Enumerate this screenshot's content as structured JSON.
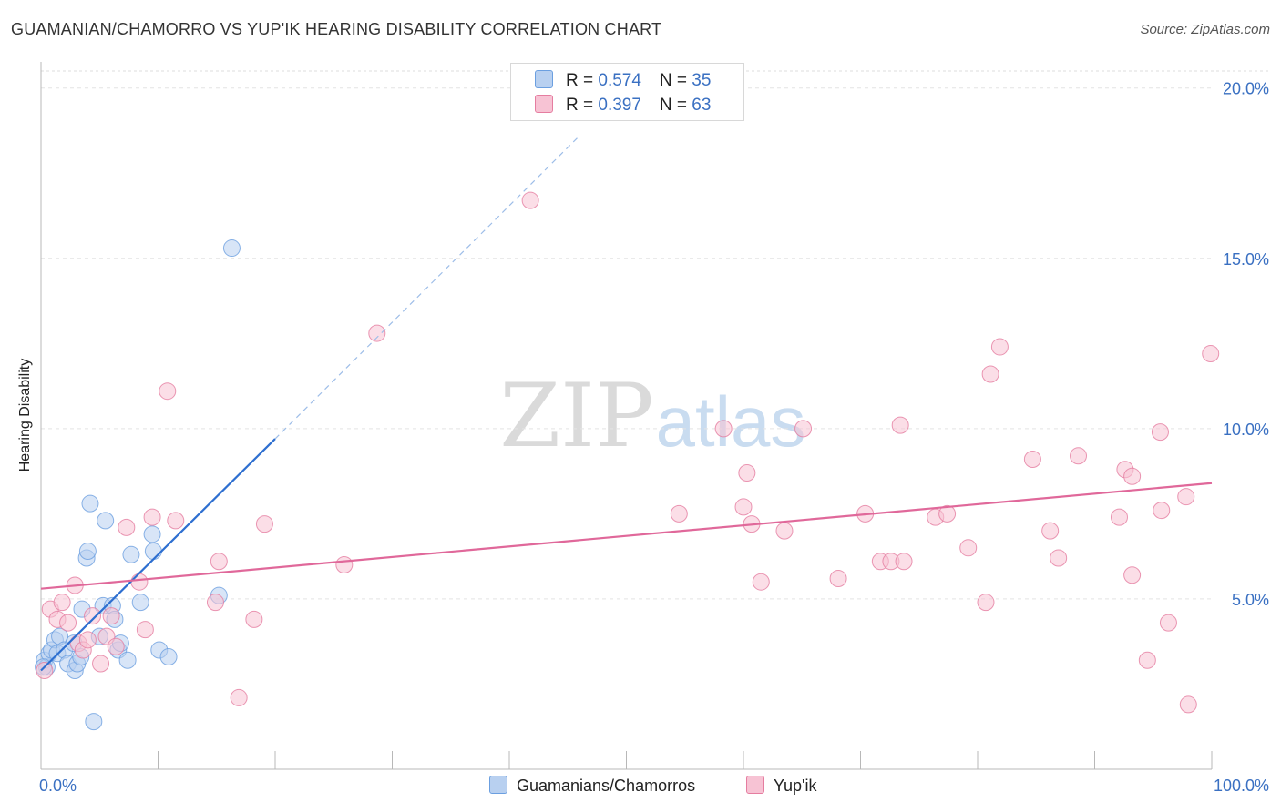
{
  "chart_data": {
    "type": "scatter",
    "title": "GUAMANIAN/CHAMORRO VS YUP'IK HEARING DISABILITY CORRELATION CHART",
    "source": "Source: ZipAtlas.com",
    "xlabel": "",
    "ylabel": "Hearing Disability",
    "xlim": [
      0,
      100
    ],
    "ylim": [
      0,
      20.5
    ],
    "x_tick_labels": [
      "0.0%",
      "100.0%"
    ],
    "y_ticks": [
      5,
      10,
      15,
      20
    ],
    "y_tick_labels": [
      "5.0%",
      "10.0%",
      "15.0%",
      "20.0%"
    ],
    "watermark": {
      "part1": "ZIP",
      "part2": "atlas"
    },
    "legend": [
      {
        "r_label": "R = ",
        "r_value": "0.574",
        "n_label": "N = ",
        "n_value": "35"
      },
      {
        "r_label": "R = ",
        "r_value": "0.397",
        "n_label": "N = ",
        "n_value": "63"
      }
    ],
    "series": [
      {
        "name": "Guamanians/Chamorros",
        "color": "#6b9fe0",
        "fill": "#b8d0f0",
        "trend": {
          "x0": 0,
          "y0": 2.9,
          "x1": 20,
          "y1": 9.7,
          "dash_to_x": 46,
          "dash_to_y": 18.6
        },
        "points": [
          [
            0.3,
            3.2
          ],
          [
            0.5,
            3.0
          ],
          [
            0.7,
            3.4
          ],
          [
            0.9,
            3.5
          ],
          [
            1.2,
            3.8
          ],
          [
            1.4,
            3.4
          ],
          [
            1.6,
            3.9
          ],
          [
            2.0,
            3.5
          ],
          [
            2.3,
            3.1
          ],
          [
            2.8,
            3.7
          ],
          [
            2.9,
            2.9
          ],
          [
            3.1,
            3.1
          ],
          [
            3.4,
            3.3
          ],
          [
            3.5,
            4.7
          ],
          [
            3.9,
            6.2
          ],
          [
            4.0,
            6.4
          ],
          [
            4.2,
            7.8
          ],
          [
            4.5,
            1.4
          ],
          [
            5.0,
            3.9
          ],
          [
            5.3,
            4.8
          ],
          [
            5.5,
            7.3
          ],
          [
            6.1,
            4.8
          ],
          [
            6.3,
            4.4
          ],
          [
            6.6,
            3.5
          ],
          [
            6.8,
            3.7
          ],
          [
            7.4,
            3.2
          ],
          [
            7.7,
            6.3
          ],
          [
            8.5,
            4.9
          ],
          [
            9.5,
            6.9
          ],
          [
            9.6,
            6.4
          ],
          [
            10.1,
            3.5
          ],
          [
            10.9,
            3.3
          ],
          [
            15.2,
            5.1
          ],
          [
            16.3,
            15.3
          ],
          [
            0.2,
            3.0
          ]
        ]
      },
      {
        "name": "Yup'ik",
        "color": "#e57da0",
        "fill": "#f7c3d4",
        "trend": {
          "x0": 0,
          "y0": 5.3,
          "x1": 100,
          "y1": 8.4
        },
        "points": [
          [
            0.3,
            2.9
          ],
          [
            0.8,
            4.7
          ],
          [
            1.4,
            4.4
          ],
          [
            1.8,
            4.9
          ],
          [
            2.3,
            4.3
          ],
          [
            2.9,
            5.4
          ],
          [
            3.2,
            3.7
          ],
          [
            3.6,
            3.5
          ],
          [
            4.0,
            3.8
          ],
          [
            4.4,
            4.5
          ],
          [
            5.1,
            3.1
          ],
          [
            5.6,
            3.9
          ],
          [
            6.0,
            4.5
          ],
          [
            6.4,
            3.6
          ],
          [
            7.3,
            7.1
          ],
          [
            8.4,
            5.5
          ],
          [
            8.9,
            4.1
          ],
          [
            9.5,
            7.4
          ],
          [
            10.8,
            11.1
          ],
          [
            11.5,
            7.3
          ],
          [
            14.9,
            4.9
          ],
          [
            15.2,
            6.1
          ],
          [
            16.9,
            2.1
          ],
          [
            18.2,
            4.4
          ],
          [
            19.1,
            7.2
          ],
          [
            25.9,
            6.0
          ],
          [
            28.7,
            12.8
          ],
          [
            41.8,
            16.7
          ],
          [
            54.5,
            7.5
          ],
          [
            58.3,
            10.0
          ],
          [
            60.0,
            7.7
          ],
          [
            60.3,
            8.7
          ],
          [
            60.7,
            7.2
          ],
          [
            61.5,
            5.5
          ],
          [
            63.5,
            7.0
          ],
          [
            65.1,
            10.0
          ],
          [
            68.1,
            5.6
          ],
          [
            70.4,
            7.5
          ],
          [
            71.7,
            6.1
          ],
          [
            72.6,
            6.1
          ],
          [
            73.4,
            10.1
          ],
          [
            73.7,
            6.1
          ],
          [
            76.4,
            7.4
          ],
          [
            77.4,
            7.5
          ],
          [
            79.2,
            6.5
          ],
          [
            80.7,
            4.9
          ],
          [
            81.1,
            11.6
          ],
          [
            81.9,
            12.4
          ],
          [
            84.7,
            9.1
          ],
          [
            86.2,
            7.0
          ],
          [
            86.9,
            6.2
          ],
          [
            88.6,
            9.2
          ],
          [
            92.1,
            7.4
          ],
          [
            92.6,
            8.8
          ],
          [
            93.2,
            8.6
          ],
          [
            93.2,
            5.7
          ],
          [
            94.5,
            3.2
          ],
          [
            95.6,
            9.9
          ],
          [
            95.7,
            7.6
          ],
          [
            96.3,
            4.3
          ],
          [
            97.8,
            8.0
          ],
          [
            98.0,
            1.9
          ],
          [
            99.9,
            12.2
          ]
        ]
      }
    ]
  }
}
